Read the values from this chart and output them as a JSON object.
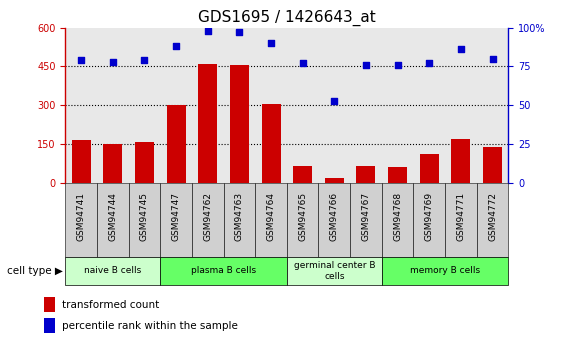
{
  "title": "GDS1695 / 1426643_at",
  "samples": [
    "GSM94741",
    "GSM94744",
    "GSM94745",
    "GSM94747",
    "GSM94762",
    "GSM94763",
    "GSM94764",
    "GSM94765",
    "GSM94766",
    "GSM94767",
    "GSM94768",
    "GSM94769",
    "GSM94771",
    "GSM94772"
  ],
  "bar_values": [
    165,
    152,
    158,
    300,
    460,
    455,
    305,
    65,
    18,
    65,
    60,
    110,
    168,
    140
  ],
  "scatter_values": [
    79,
    78,
    79,
    88,
    98,
    97,
    90,
    77,
    53,
    76,
    76,
    77,
    86,
    80
  ],
  "bar_color": "#cc0000",
  "scatter_color": "#0000cc",
  "ylim_left": [
    0,
    600
  ],
  "ylim_right": [
    0,
    100
  ],
  "yticks_left": [
    0,
    150,
    300,
    450,
    600
  ],
  "yticks_right": [
    0,
    25,
    50,
    75,
    100
  ],
  "cell_groups": [
    {
      "label": "naive B cells",
      "start": 0,
      "end": 3,
      "color": "#ccffcc"
    },
    {
      "label": "plasma B cells",
      "start": 3,
      "end": 7,
      "color": "#66ff66"
    },
    {
      "label": "germinal center B\ncells",
      "start": 7,
      "end": 10,
      "color": "#ccffcc"
    },
    {
      "label": "memory B cells",
      "start": 10,
      "end": 14,
      "color": "#66ff66"
    }
  ],
  "legend_bar_label": "transformed count",
  "legend_scatter_label": "percentile rank within the sample",
  "cell_type_label": "cell type",
  "tick_color_left": "#cc0000",
  "tick_color_right": "#0000cc",
  "title_fontsize": 11,
  "tick_label_fontsize": 7,
  "plot_bg": "#e8e8e8",
  "xticklabel_bg": "#d0d0d0"
}
